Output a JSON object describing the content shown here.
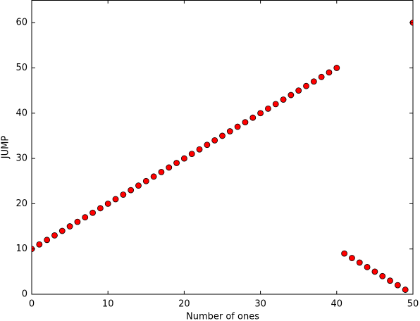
{
  "chart_data": {
    "type": "scatter",
    "x_label": "Number of ones",
    "y_label": "JUMP",
    "x": [
      0,
      1,
      2,
      3,
      4,
      5,
      6,
      7,
      8,
      9,
      10,
      11,
      12,
      13,
      14,
      15,
      16,
      17,
      18,
      19,
      20,
      21,
      22,
      23,
      24,
      25,
      26,
      27,
      28,
      29,
      30,
      31,
      32,
      33,
      34,
      35,
      36,
      37,
      38,
      39,
      40,
      41,
      42,
      43,
      44,
      45,
      46,
      47,
      48,
      49,
      50
    ],
    "values": [
      10,
      11,
      12,
      13,
      14,
      15,
      16,
      17,
      18,
      19,
      20,
      21,
      22,
      23,
      24,
      25,
      26,
      27,
      28,
      29,
      30,
      31,
      32,
      33,
      34,
      35,
      36,
      37,
      38,
      39,
      40,
      41,
      42,
      43,
      44,
      45,
      46,
      47,
      48,
      49,
      50,
      9,
      8,
      7,
      6,
      5,
      4,
      3,
      2,
      1,
      60
    ],
    "color": "#ff0000",
    "xlim": [
      0,
      50
    ],
    "xticks": [
      0,
      10,
      20,
      30,
      40,
      50
    ],
    "ylim": [
      0,
      65
    ],
    "yticks": [
      0,
      10,
      20,
      30,
      40,
      50,
      60
    ]
  }
}
